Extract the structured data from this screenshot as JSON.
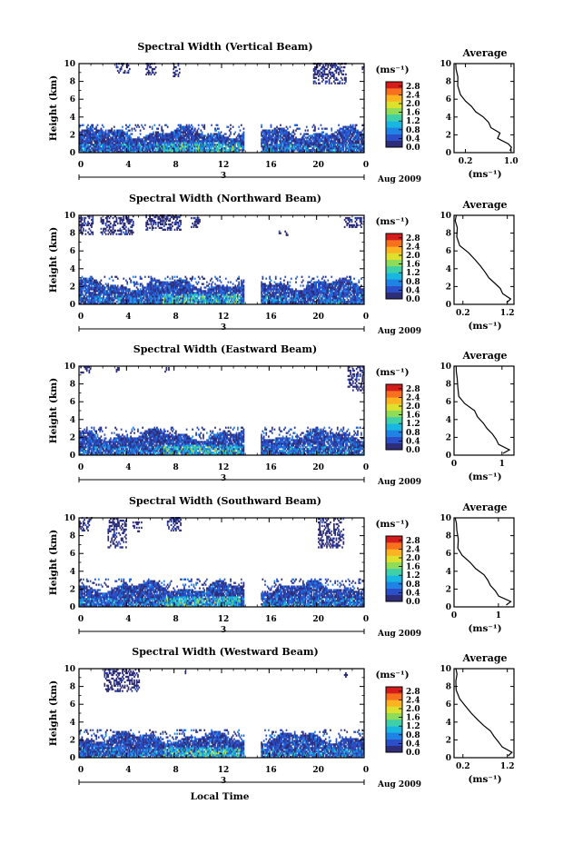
{
  "chart_data": {
    "type": "heatmap",
    "x_axis": {
      "label": "Local Time",
      "range": [
        0,
        24
      ],
      "ticks": [
        "0",
        "4",
        "8",
        "12",
        "16",
        "20",
        "0"
      ],
      "tick_values": [
        0,
        4,
        8,
        12,
        16,
        20,
        24
      ],
      "date_marker": "3",
      "date_label": "Aug 2009"
    },
    "y_axis": {
      "label": "Height (km)",
      "range": [
        0,
        10
      ],
      "ticks": [
        "0",
        "2",
        "4",
        "6",
        "8",
        "10"
      ]
    },
    "data_gap": [
      13.9,
      15.2
    ],
    "colorbar": {
      "unit_label": "(ms⁻¹)",
      "ticks": [
        "0.0",
        "0.4",
        "0.8",
        "1.2",
        "1.6",
        "2.0",
        "2.4",
        "2.8"
      ],
      "range": [
        0,
        3.0
      ],
      "colors": [
        "#2e2d78",
        "#2a4fc8",
        "#1f83e6",
        "#19b6e0",
        "#3fd0a8",
        "#8fdc5a",
        "#dde02c",
        "#fbb321",
        "#f6701e",
        "#d51c1c"
      ]
    },
    "average_panel": {
      "title": "Average",
      "xlabel": "(ms⁻¹)"
    },
    "panels": [
      {
        "title": "Spectral Width (Vertical Beam)",
        "avg_xlim": [
          0,
          1.05
        ],
        "avg_ticks": [
          0.2,
          1.0
        ],
        "avg_tick_labels": [
          "0.2",
          "1.0"
        ],
        "avg_profile": [
          [
            0.97,
            0.2
          ],
          [
            1.0,
            0.6
          ],
          [
            0.93,
            1.0
          ],
          [
            0.78,
            1.6
          ],
          [
            0.8,
            2.2
          ],
          [
            0.66,
            2.8
          ],
          [
            0.6,
            3.4
          ],
          [
            0.5,
            4.0
          ],
          [
            0.38,
            4.6
          ],
          [
            0.3,
            5.2
          ],
          [
            0.22,
            5.8
          ],
          [
            0.12,
            6.5
          ],
          [
            0.07,
            7.5
          ],
          [
            0.05,
            8.5
          ],
          [
            0.04,
            9.4
          ],
          [
            0.02,
            10.0
          ]
        ],
        "upper_echoes": [
          [
            3.1,
            4.3,
            8.9,
            10.0
          ],
          [
            5.6,
            6.5,
            8.7,
            10.0
          ],
          [
            7.9,
            8.5,
            8.5,
            10.0
          ],
          [
            19.7,
            22.5,
            7.7,
            10.0
          ],
          [
            23.8,
            24.0,
            9.3,
            10.0
          ]
        ]
      },
      {
        "title": "Spectral Width (Northward Beam)",
        "avg_xlim": [
          0,
          1.35
        ],
        "avg_ticks": [
          0.2,
          1.2
        ],
        "avg_tick_labels": [
          "0.2",
          "1.2"
        ],
        "avg_profile": [
          [
            1.2,
            0.2
          ],
          [
            1.3,
            0.6
          ],
          [
            1.1,
            1.2
          ],
          [
            1.02,
            1.8
          ],
          [
            0.9,
            2.4
          ],
          [
            0.8,
            3.0
          ],
          [
            0.7,
            3.6
          ],
          [
            0.6,
            4.3
          ],
          [
            0.45,
            5.0
          ],
          [
            0.3,
            5.8
          ],
          [
            0.15,
            6.6
          ],
          [
            0.08,
            7.6
          ],
          [
            0.06,
            8.6
          ],
          [
            0.05,
            9.4
          ],
          [
            0.04,
            10.0
          ]
        ],
        "upper_echoes": [
          [
            0.0,
            1.2,
            7.8,
            10.0
          ],
          [
            1.8,
            4.6,
            7.8,
            10.0
          ],
          [
            5.6,
            8.6,
            8.3,
            10.0
          ],
          [
            9.4,
            10.2,
            8.6,
            9.8
          ],
          [
            16.8,
            17.6,
            7.7,
            8.3
          ],
          [
            22.3,
            24.0,
            8.6,
            9.8
          ]
        ]
      },
      {
        "title": "Spectral Width (Eastward Beam)",
        "avg_xlim": [
          0,
          1.25
        ],
        "avg_ticks": [
          0,
          1
        ],
        "avg_tick_labels": [
          "0",
          "1"
        ],
        "avg_profile": [
          [
            1.05,
            0.2
          ],
          [
            1.15,
            0.6
          ],
          [
            0.95,
            1.2
          ],
          [
            0.85,
            1.8
          ],
          [
            0.78,
            2.4
          ],
          [
            0.7,
            3.0
          ],
          [
            0.6,
            3.6
          ],
          [
            0.5,
            4.3
          ],
          [
            0.4,
            5.0
          ],
          [
            0.25,
            5.8
          ],
          [
            0.12,
            6.6
          ],
          [
            0.06,
            7.6
          ],
          [
            0.04,
            8.6
          ],
          [
            0.03,
            9.4
          ],
          [
            0.02,
            10.0
          ]
        ],
        "upper_echoes": [
          [
            0.1,
            1.0,
            9.2,
            10.0
          ],
          [
            3.1,
            3.4,
            9.3,
            9.8
          ],
          [
            7.2,
            7.6,
            9.3,
            9.8
          ],
          [
            22.6,
            24.0,
            7.2,
            10.0
          ]
        ]
      },
      {
        "title": "Spectral Width (Southward Beam)",
        "avg_xlim": [
          0,
          1.35
        ],
        "avg_ticks": [
          0,
          1
        ],
        "avg_tick_labels": [
          "0",
          "1"
        ],
        "avg_profile": [
          [
            1.2,
            0.2
          ],
          [
            1.25,
            0.6
          ],
          [
            1.0,
            1.2
          ],
          [
            0.95,
            1.8
          ],
          [
            0.85,
            2.4
          ],
          [
            0.75,
            3.0
          ],
          [
            0.65,
            3.6
          ],
          [
            0.5,
            4.3
          ],
          [
            0.35,
            5.0
          ],
          [
            0.2,
            5.8
          ],
          [
            0.1,
            6.6
          ],
          [
            0.07,
            7.6
          ],
          [
            0.05,
            8.6
          ],
          [
            0.04,
            9.4
          ],
          [
            0.03,
            10.0
          ]
        ],
        "upper_echoes": [
          [
            0.0,
            1.1,
            8.5,
            10.0
          ],
          [
            2.4,
            4.0,
            6.6,
            10.0
          ],
          [
            4.5,
            5.3,
            8.4,
            9.6
          ],
          [
            7.4,
            8.6,
            8.5,
            10.0
          ],
          [
            20.1,
            22.3,
            6.6,
            10.0
          ]
        ]
      },
      {
        "title": "Spectral Width (Westward Beam)",
        "avg_xlim": [
          0,
          1.35
        ],
        "avg_ticks": [
          0.2,
          1.2
        ],
        "avg_tick_labels": [
          "0.2",
          "1.2"
        ],
        "avg_profile": [
          [
            1.2,
            0.2
          ],
          [
            1.3,
            0.6
          ],
          [
            1.1,
            1.2
          ],
          [
            1.0,
            1.8
          ],
          [
            0.9,
            2.4
          ],
          [
            0.8,
            3.0
          ],
          [
            0.7,
            3.6
          ],
          [
            0.55,
            4.3
          ],
          [
            0.4,
            5.0
          ],
          [
            0.25,
            5.8
          ],
          [
            0.12,
            6.6
          ],
          [
            0.07,
            7.6
          ],
          [
            0.05,
            8.6
          ],
          [
            0.04,
            9.4
          ],
          [
            0.03,
            10.0
          ]
        ],
        "upper_echoes": [
          [
            2.1,
            5.1,
            7.4,
            10.0
          ],
          [
            8.8,
            9.1,
            9.4,
            9.8
          ],
          [
            22.3,
            22.6,
            9.0,
            9.5
          ]
        ]
      }
    ]
  }
}
